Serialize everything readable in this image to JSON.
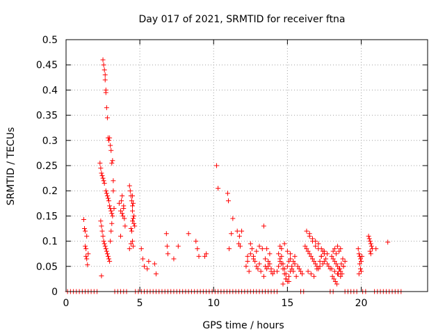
{
  "chart_data": {
    "type": "scatter",
    "title": "Day 017 of 2021, SRMTID for receiver ftna",
    "xlabel": "GPS time / hours",
    "ylabel": "SRMTID / TECUs",
    "xlim": [
      0,
      24.5
    ],
    "ylim": [
      0,
      0.5
    ],
    "x_ticks": [
      0,
      5,
      10,
      15,
      20
    ],
    "y_ticks": [
      0,
      0.05,
      0.1,
      0.15,
      0.2,
      0.25,
      0.3,
      0.35,
      0.4,
      0.45,
      0.5
    ],
    "x_tick_labels": [
      "0",
      "5",
      "10",
      "15",
      "20"
    ],
    "y_tick_labels": [
      "0",
      "0.05",
      "0.1",
      "0.15",
      "0.2",
      "0.25",
      "0.3",
      "0.35",
      "0.4",
      "0.45",
      "0.5"
    ],
    "grid": true,
    "marker": "+",
    "color": "#ff0000",
    "series": [
      {
        "x": [
          1.2,
          1.25,
          1.3,
          1.3,
          1.35,
          1.35,
          1.4,
          1.4,
          1.45,
          1.5,
          2.4,
          2.5,
          2.55,
          2.6,
          2.65,
          2.65,
          2.7,
          2.7,
          2.75,
          2.8,
          2.85,
          2.9,
          2.95,
          3.0,
          3.05,
          3.1,
          3.15,
          3.2,
          2.3,
          2.35,
          2.4,
          2.45,
          2.5,
          2.55,
          2.6,
          2.7,
          2.75,
          2.8,
          2.85,
          2.9,
          2.95,
          3.0,
          3.05,
          3.1,
          3.15,
          2.35,
          2.4,
          2.45,
          2.5,
          2.55,
          2.6,
          2.65,
          2.7,
          2.75,
          2.8,
          2.85,
          2.9,
          2.95,
          3.0,
          3.05,
          3.1,
          3.2,
          3.25,
          3.6,
          3.7,
          3.75,
          3.8,
          3.85,
          3.9,
          3.95,
          4.0,
          3.7,
          3.8,
          3.9,
          4.3,
          4.35,
          4.4,
          4.45,
          4.5,
          4.5,
          4.55,
          4.6,
          4.4,
          4.45,
          4.5,
          4.55,
          4.3,
          4.4,
          4.5,
          4.6,
          4.65,
          4.5,
          4.55,
          5.1,
          5.2,
          5.3,
          5.5,
          5.6,
          6.0,
          6.1,
          6.8,
          6.85,
          6.9,
          7.3,
          7.6,
          8.3,
          8.8,
          8.9,
          9.0,
          9.4,
          9.5,
          10.2,
          10.3,
          10.95,
          11.0,
          11.05,
          11.2,
          11.3,
          11.6,
          11.7,
          11.75,
          11.8,
          11.9,
          12.2,
          12.3,
          12.4,
          12.5,
          12.6,
          12.7,
          12.8,
          12.9,
          13.0,
          13.1,
          13.2,
          13.4,
          13.5,
          13.6,
          13.7,
          13.8,
          13.9,
          14.0,
          12.3,
          12.5,
          12.7,
          12.9,
          13.1,
          13.3,
          13.5,
          13.7,
          13.9,
          14.1,
          13.4,
          13.6,
          13.8,
          14.3,
          14.4,
          14.5,
          14.6,
          14.7,
          14.8,
          14.9,
          15.0,
          15.1,
          15.2,
          15.3,
          15.4,
          15.5,
          15.6,
          15.7,
          15.8,
          15.9,
          16.0,
          14.4,
          14.5,
          14.6,
          14.7,
          14.8,
          14.9,
          15.0,
          15.1,
          15.2,
          15.3,
          15.4,
          15.5,
          14.5,
          14.6,
          14.8,
          15.0,
          15.2,
          14.7,
          14.9,
          15.1,
          16.2,
          16.3,
          16.4,
          16.5,
          16.6,
          16.7,
          16.8,
          16.9,
          17.0,
          17.1,
          17.2,
          17.3,
          17.4,
          17.5,
          17.6,
          17.7,
          17.8,
          17.9,
          16.3,
          16.5,
          16.7,
          16.9,
          17.1,
          17.3,
          17.5,
          17.7,
          16.4,
          16.6,
          16.8,
          17.0,
          17.2,
          17.4,
          16.5,
          16.7,
          16.9,
          17.1,
          17.3,
          17.5,
          18.0,
          18.1,
          18.2,
          18.3,
          18.4,
          18.5,
          18.6,
          18.7,
          18.8,
          18.9,
          18.05,
          18.15,
          18.25,
          18.35,
          18.45,
          18.55,
          18.65,
          18.75,
          18.1,
          18.2,
          18.3,
          18.4,
          18.5,
          18.6,
          18.0,
          18.2,
          18.4,
          18.6,
          18.8,
          19.8,
          19.85,
          19.9,
          19.95,
          20.0,
          19.9,
          19.95,
          20.0,
          19.85,
          20.05,
          20.5,
          20.55,
          20.6,
          20.65,
          20.7,
          20.75,
          20.6,
          20.65,
          21.0,
          21.8
        ],
        "y": [
          0.143,
          0.125,
          0.12,
          0.09,
          0.085,
          0.07,
          0.065,
          0.11,
          0.053,
          0.075,
          0.031,
          0.46,
          0.45,
          0.44,
          0.43,
          0.42,
          0.4,
          0.395,
          0.365,
          0.345,
          0.305,
          0.3,
          0.305,
          0.29,
          0.28,
          0.255,
          0.26,
          0.22,
          0.255,
          0.245,
          0.235,
          0.23,
          0.225,
          0.22,
          0.215,
          0.2,
          0.195,
          0.19,
          0.185,
          0.18,
          0.17,
          0.165,
          0.16,
          0.155,
          0.15,
          0.14,
          0.13,
          0.12,
          0.11,
          0.1,
          0.095,
          0.09,
          0.085,
          0.08,
          0.075,
          0.07,
          0.065,
          0.06,
          0.1,
          0.12,
          0.135,
          0.2,
          0.165,
          0.175,
          0.16,
          0.18,
          0.19,
          0.15,
          0.17,
          0.145,
          0.13,
          0.11,
          0.155,
          0.165,
          0.21,
          0.2,
          0.19,
          0.18,
          0.17,
          0.16,
          0.145,
          0.135,
          0.125,
          0.12,
          0.1,
          0.09,
          0.085,
          0.095,
          0.14,
          0.15,
          0.13,
          0.19,
          0.175,
          0.085,
          0.065,
          0.05,
          0.045,
          0.06,
          0.055,
          0.035,
          0.115,
          0.09,
          0.075,
          0.065,
          0.09,
          0.115,
          0.1,
          0.085,
          0.07,
          0.07,
          0.075,
          0.25,
          0.205,
          0.195,
          0.18,
          0.085,
          0.115,
          0.145,
          0.12,
          0.095,
          0.11,
          0.09,
          0.12,
          0.05,
          0.06,
          0.04,
          0.095,
          0.085,
          0.07,
          0.06,
          0.05,
          0.045,
          0.055,
          0.04,
          0.03,
          0.05,
          0.045,
          0.06,
          0.055,
          0.04,
          0.035,
          0.07,
          0.075,
          0.065,
          0.08,
          0.09,
          0.085,
          0.065,
          0.05,
          0.045,
          0.04,
          0.13,
          0.085,
          0.075,
          0.04,
          0.05,
          0.06,
          0.07,
          0.055,
          0.045,
          0.035,
          0.05,
          0.06,
          0.065,
          0.045,
          0.04,
          0.055,
          0.03,
          0.05,
          0.045,
          0.04,
          0.035,
          0.075,
          0.065,
          0.055,
          0.045,
          0.035,
          0.025,
          0.02,
          0.03,
          0.04,
          0.05,
          0.06,
          0.07,
          0.09,
          0.085,
          0.095,
          0.08,
          0.075,
          0.015,
          0.025,
          0.02,
          0.09,
          0.085,
          0.08,
          0.075,
          0.07,
          0.065,
          0.06,
          0.055,
          0.05,
          0.045,
          0.06,
          0.07,
          0.08,
          0.075,
          0.065,
          0.055,
          0.05,
          0.045,
          0.12,
          0.11,
          0.1,
          0.09,
          0.095,
          0.085,
          0.08,
          0.075,
          0.04,
          0.035,
          0.03,
          0.045,
          0.05,
          0.055,
          0.115,
          0.105,
          0.1,
          0.085,
          0.07,
          0.06,
          0.07,
          0.065,
          0.06,
          0.055,
          0.05,
          0.045,
          0.04,
          0.035,
          0.05,
          0.06,
          0.03,
          0.025,
          0.02,
          0.015,
          0.035,
          0.045,
          0.055,
          0.065,
          0.08,
          0.085,
          0.075,
          0.09,
          0.08,
          0.085,
          0.045,
          0.04,
          0.035,
          0.03,
          0.05,
          0.085,
          0.075,
          0.07,
          0.065,
          0.06,
          0.055,
          0.045,
          0.04,
          0.035,
          0.07,
          0.11,
          0.105,
          0.1,
          0.095,
          0.09,
          0.085,
          0.08,
          0.075,
          0.085,
          0.098
        ]
      },
      {
        "x": [
          0.1,
          0.3,
          0.5,
          0.7,
          0.9,
          1.1,
          1.3,
          1.5,
          1.7,
          1.9,
          2.1,
          3.3,
          3.5,
          3.7,
          3.9,
          4.1,
          4.7,
          4.9,
          5.1,
          5.3,
          5.5,
          5.7,
          5.9,
          6.1,
          6.3,
          6.5,
          6.7,
          6.9,
          7.1,
          7.3,
          7.5,
          7.7,
          7.9,
          8.1,
          8.3,
          8.5,
          8.7,
          8.9,
          9.1,
          9.3,
          9.5,
          9.7,
          9.9,
          10.1,
          10.3,
          10.5,
          10.7,
          10.9,
          11.1,
          11.3,
          11.5,
          11.7,
          11.9,
          12.1,
          12.3,
          12.5,
          12.7,
          12.9,
          13.1,
          13.3,
          13.5,
          13.7,
          13.9,
          14.1,
          14.3,
          15.9,
          16.1,
          17.9,
          18.1,
          18.9,
          19.1,
          19.3,
          19.5,
          19.7,
          20.1,
          20.3,
          20.9,
          21.1,
          21.3,
          21.5,
          21.7,
          21.9,
          22.1,
          22.3,
          22.5,
          22.7
        ],
        "y": [
          0,
          0,
          0,
          0,
          0,
          0,
          0,
          0,
          0,
          0,
          0,
          0,
          0,
          0,
          0,
          0,
          0,
          0,
          0,
          0,
          0,
          0,
          0,
          0,
          0,
          0,
          0,
          0,
          0,
          0,
          0,
          0,
          0,
          0,
          0,
          0,
          0,
          0,
          0,
          0,
          0,
          0,
          0,
          0,
          0,
          0,
          0,
          0,
          0,
          0,
          0,
          0,
          0,
          0,
          0,
          0,
          0,
          0,
          0,
          0,
          0,
          0,
          0,
          0,
          0,
          0,
          0,
          0,
          0,
          0,
          0,
          0,
          0,
          0,
          0,
          0,
          0,
          0,
          0,
          0,
          0,
          0,
          0,
          0,
          0,
          0
        ]
      }
    ]
  }
}
